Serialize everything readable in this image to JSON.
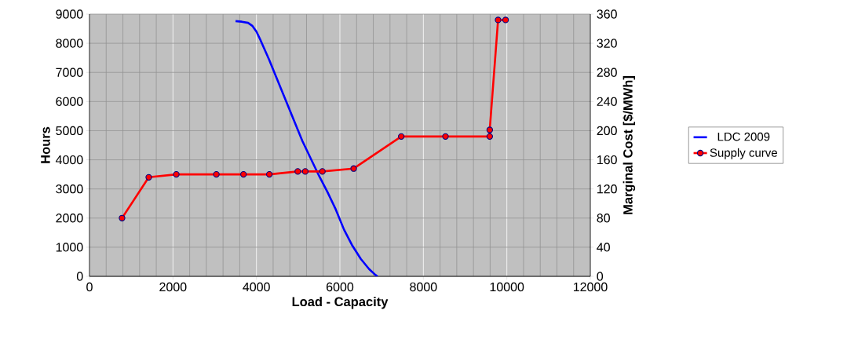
{
  "chart_data": {
    "type": "line",
    "xlabel": "Load - Capacity",
    "ylabel": "Hours",
    "y2label": "Marginal Cost [$/MWh]",
    "xlim": [
      0,
      12000
    ],
    "xticks": [
      0,
      2000,
      4000,
      6000,
      8000,
      10000,
      12000
    ],
    "ylim": [
      0,
      9000
    ],
    "yticks": [
      0,
      1000,
      2000,
      3000,
      4000,
      5000,
      6000,
      7000,
      8000,
      9000
    ],
    "y2lim": [
      0,
      360
    ],
    "y2ticks": [
      0,
      40,
      80,
      120,
      160,
      200,
      240,
      280,
      320,
      360
    ],
    "grid": true,
    "legend": "right",
    "series": [
      {
        "name": "LDC 2009",
        "color": "#0000ff",
        "marker": "none",
        "x": [
          3500,
          3650,
          3800,
          3900,
          4000,
          4100,
          4300,
          4500,
          4700,
          4900,
          5100,
          5300,
          5500,
          5700,
          5900,
          6100,
          6300,
          6500,
          6700,
          6850,
          6900
        ],
        "values": [
          8760,
          8740,
          8700,
          8600,
          8400,
          8100,
          7450,
          6750,
          6050,
          5350,
          4650,
          4050,
          3450,
          2900,
          2300,
          1600,
          1050,
          600,
          250,
          50,
          0
        ]
      },
      {
        "name": "Supply curve",
        "color": "#ff0000",
        "marker": "circle",
        "axis": "y2",
        "x": [
          780,
          1420,
          2080,
          3040,
          3690,
          4310,
          4990,
          5170,
          5580,
          6330,
          7470,
          8530,
          9590,
          9590,
          9790,
          9970
        ],
        "values": [
          80,
          136,
          140,
          140,
          140,
          140,
          144,
          144,
          144,
          148,
          192,
          192,
          192,
          201,
          352,
          352
        ]
      }
    ]
  }
}
